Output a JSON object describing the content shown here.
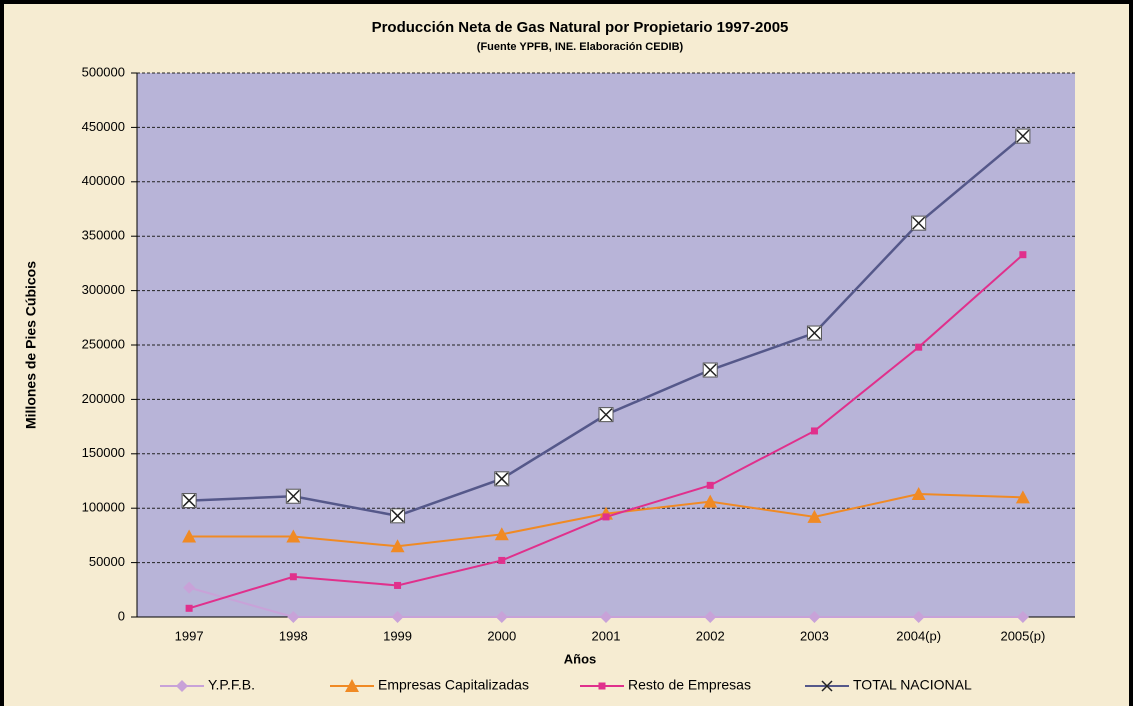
{
  "chart_data": {
    "type": "line",
    "title": "Producción Neta de Gas Natural por Propietario 1997-2005",
    "subtitle": "(Fuente YPFB, INE. Elaboración CEDIB)",
    "x_label": "Años",
    "y_label": "Millones de Pies Cúbicos",
    "categories": [
      "1997",
      "1998",
      "1999",
      "2000",
      "2001",
      "2002",
      "2003",
      "2004(p)",
      "2005(p)"
    ],
    "series": [
      {
        "name": "Y.P.F.B.",
        "color": "#c8a2d8",
        "marker": "diamond",
        "values": [
          27000,
          0,
          0,
          0,
          0,
          0,
          0,
          0,
          0
        ]
      },
      {
        "name": "Empresas Capitalizadas",
        "color": "#f08a24",
        "marker": "triangle",
        "values": [
          74000,
          74000,
          65000,
          76000,
          95000,
          106000,
          92000,
          113000,
          110000
        ]
      },
      {
        "name": "Resto de Empresas",
        "color": "#e0308c",
        "marker": "square",
        "values": [
          8000,
          37000,
          29000,
          52000,
          92000,
          121000,
          171000,
          248000,
          333000
        ]
      },
      {
        "name": "TOTAL NACIONAL",
        "color": "#55588a",
        "marker": "x",
        "values": [
          107000,
          111000,
          93000,
          127000,
          186000,
          227000,
          261000,
          362000,
          442000
        ]
      }
    ],
    "ylim": [
      0,
      500000
    ],
    "yticks": [
      0,
      50000,
      100000,
      150000,
      200000,
      250000,
      300000,
      350000,
      400000,
      450000,
      500000
    ],
    "grid": true,
    "legend": "bottom"
  }
}
